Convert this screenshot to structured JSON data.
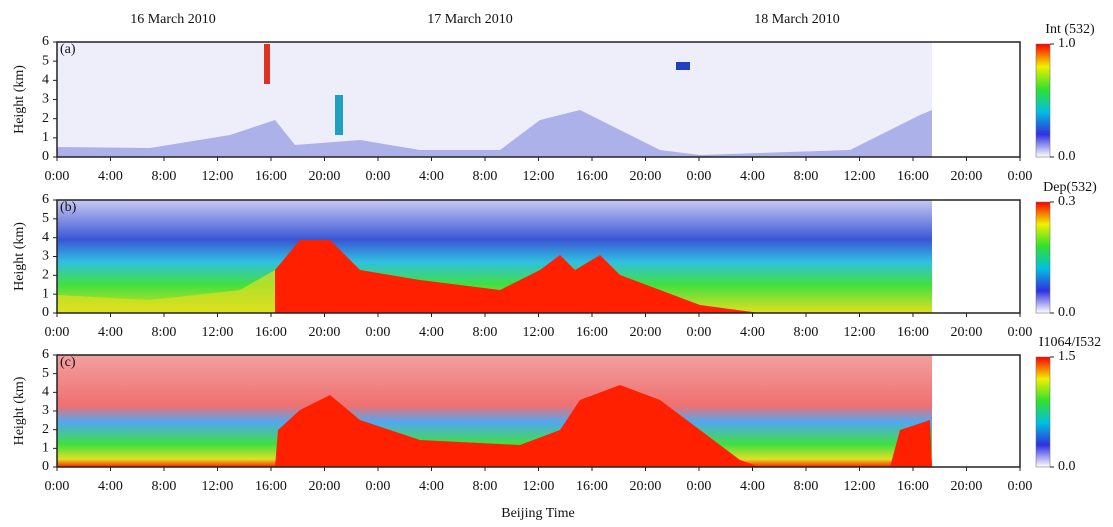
{
  "header": {
    "dates": [
      "16 March 2010",
      "17 March 2010",
      "18 March 2010"
    ],
    "x_label": "Beijing Time"
  },
  "chart_data": [
    {
      "type": "heatmap",
      "panel_label": "(a)",
      "ylabel": "Height (km)",
      "xlim": [
        0,
        72
      ],
      "xticks": [
        {
          "value": 0,
          "label": "0:00"
        },
        {
          "value": 4,
          "label": "4:00"
        },
        {
          "value": 8,
          "label": "8:00"
        },
        {
          "value": 12,
          "label": "12:00"
        },
        {
          "value": 16,
          "label": "16:00"
        },
        {
          "value": 20,
          "label": "20:00"
        },
        {
          "value": 24,
          "label": "0:00"
        },
        {
          "value": 28,
          "label": "4:00"
        },
        {
          "value": 32,
          "label": "8:00"
        },
        {
          "value": 36,
          "label": "12:00"
        },
        {
          "value": 40,
          "label": "16:00"
        },
        {
          "value": 44,
          "label": "20:00"
        },
        {
          "value": 48,
          "label": "0:00"
        },
        {
          "value": 52,
          "label": "4:00"
        },
        {
          "value": 56,
          "label": "8:00"
        },
        {
          "value": 60,
          "label": "12:00"
        },
        {
          "value": 64,
          "label": "16:00"
        },
        {
          "value": 68,
          "label": "20:00"
        },
        {
          "value": 72,
          "label": "0:00"
        }
      ],
      "ylim": [
        0,
        6
      ],
      "yticks": [
        0,
        1,
        2,
        3,
        4,
        5,
        6
      ],
      "colorbar": {
        "label": "Int (532)",
        "lim": [
          0,
          1
        ],
        "ticks": [
          {
            "value": 0,
            "label": "0.0"
          },
          {
            "value": 1,
            "label": "1.0"
          }
        ],
        "colors": [
          "#ffffff",
          "#3030e0",
          "#00c0e0",
          "#30e030",
          "#f0f000",
          "#ff0000"
        ]
      }
    },
    {
      "type": "heatmap",
      "panel_label": "(b)",
      "ylabel": "Height (km)",
      "xlim": [
        0,
        72
      ],
      "xticks": [
        {
          "value": 0,
          "label": "0:00"
        },
        {
          "value": 4,
          "label": "4:00"
        },
        {
          "value": 8,
          "label": "8:00"
        },
        {
          "value": 12,
          "label": "12:00"
        },
        {
          "value": 16,
          "label": "16:00"
        },
        {
          "value": 20,
          "label": "20:00"
        },
        {
          "value": 24,
          "label": "0:00"
        },
        {
          "value": 28,
          "label": "4:00"
        },
        {
          "value": 32,
          "label": "8:00"
        },
        {
          "value": 36,
          "label": "12:00"
        },
        {
          "value": 40,
          "label": "16:00"
        },
        {
          "value": 44,
          "label": "20:00"
        },
        {
          "value": 48,
          "label": "0:00"
        },
        {
          "value": 52,
          "label": "4:00"
        },
        {
          "value": 56,
          "label": "8:00"
        },
        {
          "value": 60,
          "label": "12:00"
        },
        {
          "value": 64,
          "label": "16:00"
        },
        {
          "value": 68,
          "label": "20:00"
        },
        {
          "value": 72,
          "label": "0:00"
        }
      ],
      "ylim": [
        0,
        6
      ],
      "yticks": [
        0,
        1,
        2,
        3,
        4,
        5,
        6
      ],
      "colorbar": {
        "label": "Dep(532)",
        "lim": [
          0,
          0.3
        ],
        "ticks": [
          {
            "value": 0,
            "label": "0.0"
          },
          0.3
        ],
        "colors": [
          "#ffffff",
          "#3030e0",
          "#00c0e0",
          "#30e030",
          "#f0f000",
          "#ff0000"
        ]
      }
    },
    {
      "type": "heatmap",
      "panel_label": "(c)",
      "ylabel": "Height (km)",
      "xlim": [
        0,
        72
      ],
      "xticks": [
        {
          "value": 0,
          "label": "0:00"
        },
        {
          "value": 4,
          "label": "4:00"
        },
        {
          "value": 8,
          "label": "8:00"
        },
        {
          "value": 12,
          "label": "12:00"
        },
        {
          "value": 16,
          "label": "16:00"
        },
        {
          "value": 20,
          "label": "20:00"
        },
        {
          "value": 24,
          "label": "0:00"
        },
        {
          "value": 28,
          "label": "4:00"
        },
        {
          "value": 32,
          "label": "8:00"
        },
        {
          "value": 36,
          "label": "12:00"
        },
        {
          "value": 40,
          "label": "16:00"
        },
        {
          "value": 44,
          "label": "20:00"
        },
        {
          "value": 48,
          "label": "0:00"
        },
        {
          "value": 52,
          "label": "4:00"
        },
        {
          "value": 56,
          "label": "8:00"
        },
        {
          "value": 60,
          "label": "12:00"
        },
        {
          "value": 64,
          "label": "16:00"
        },
        {
          "value": 68,
          "label": "20:00"
        },
        {
          "value": 72,
          "label": "0:00"
        }
      ],
      "ylim": [
        0,
        6
      ],
      "yticks": [
        0,
        1,
        2,
        3,
        4,
        5,
        6
      ],
      "colorbar": {
        "label": "I1064/I532",
        "lim": [
          0,
          1.5
        ],
        "ticks": [
          {
            "value": 0,
            "label": "0.0"
          },
          1.5
        ],
        "colors": [
          "#ffffff",
          "#3030e0",
          "#00c0e0",
          "#30e030",
          "#f0f000",
          "#ff0000"
        ]
      }
    }
  ]
}
